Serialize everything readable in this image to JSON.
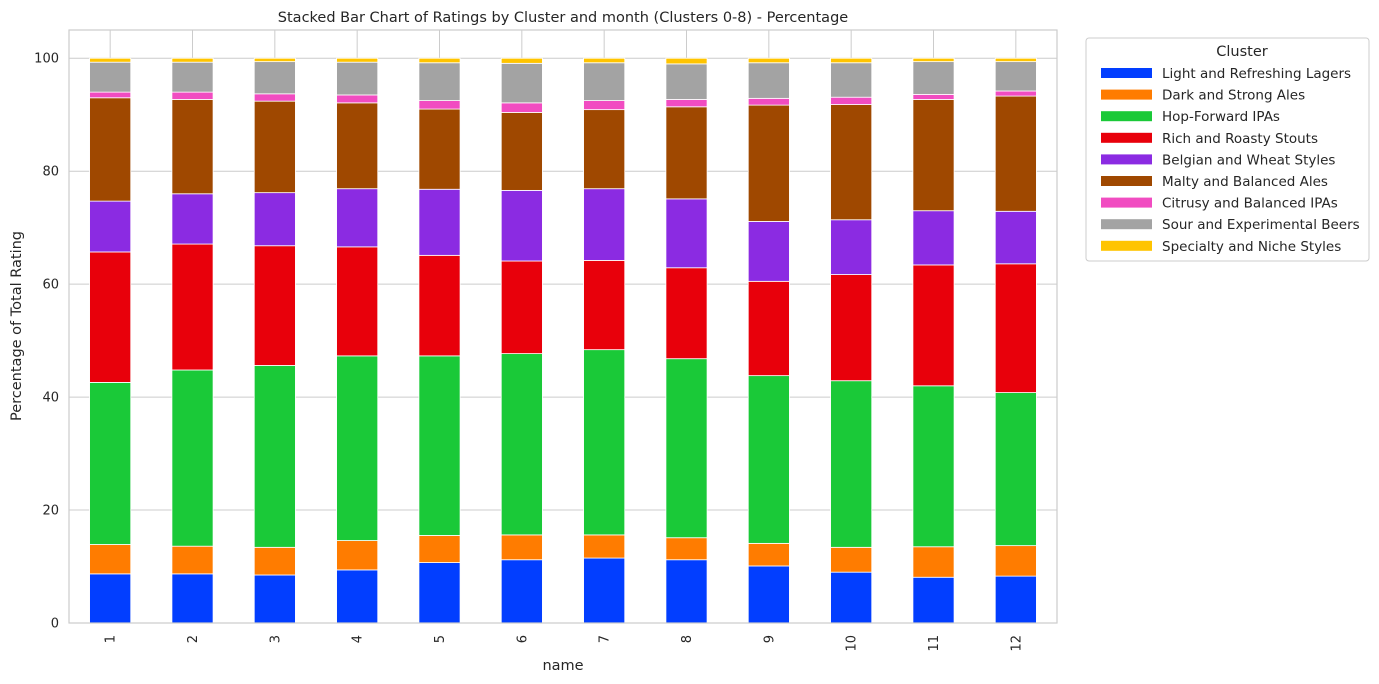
{
  "chart_data": {
    "type": "bar",
    "stacked": true,
    "title": "Stacked Bar Chart of Ratings by Cluster and month (Clusters 0-8) - Percentage",
    "xlabel": "name",
    "ylabel": "Percentage of Total Rating",
    "ylim": [
      0,
      105
    ],
    "yticks": [
      0,
      20,
      40,
      60,
      80,
      100
    ],
    "grid": true,
    "legend_title": "Cluster",
    "legend_position": "outside-top-right",
    "categories": [
      "1",
      "2",
      "3",
      "4",
      "5",
      "6",
      "7",
      "8",
      "9",
      "10",
      "11",
      "12"
    ],
    "series": [
      {
        "name": "Light and Refreshing Lagers",
        "color": "#023eff",
        "values": [
          8.7,
          8.7,
          8.5,
          9.4,
          10.7,
          11.2,
          11.5,
          11.2,
          10.1,
          9.0,
          8.1,
          8.3
        ]
      },
      {
        "name": "Dark and Strong Ales",
        "color": "#ff7c00",
        "values": [
          5.2,
          4.9,
          4.9,
          5.2,
          4.8,
          4.4,
          4.1,
          3.9,
          4.0,
          4.4,
          5.4,
          5.4
        ]
      },
      {
        "name": "Hop-Forward IPAs",
        "color": "#1ac938",
        "values": [
          28.7,
          31.2,
          32.2,
          32.7,
          31.8,
          32.1,
          32.8,
          31.7,
          29.7,
          29.5,
          28.5,
          27.1
        ]
      },
      {
        "name": "Rich and Roasty Stouts",
        "color": "#e8000b",
        "values": [
          23.1,
          22.3,
          21.2,
          19.3,
          17.8,
          16.4,
          15.8,
          16.1,
          16.7,
          18.8,
          21.4,
          22.8
        ]
      },
      {
        "name": "Belgian and Wheat Styles",
        "color": "#8b2be2",
        "values": [
          9.0,
          8.9,
          9.4,
          10.3,
          11.7,
          12.5,
          12.7,
          12.2,
          10.6,
          9.7,
          9.6,
          9.3
        ]
      },
      {
        "name": "Malty and Balanced Ales",
        "color": "#9f4800",
        "values": [
          18.3,
          16.7,
          16.2,
          15.2,
          14.2,
          13.8,
          14.0,
          16.3,
          20.6,
          20.4,
          19.7,
          20.4
        ]
      },
      {
        "name": "Citrusy and Balanced IPAs",
        "color": "#f14cc1",
        "values": [
          1.0,
          1.3,
          1.3,
          1.4,
          1.5,
          1.7,
          1.6,
          1.3,
          1.2,
          1.3,
          0.9,
          0.9
        ]
      },
      {
        "name": "Sour and Experimental Beers",
        "color": "#a3a3a3",
        "values": [
          5.3,
          5.3,
          5.7,
          5.8,
          6.7,
          7.0,
          6.7,
          6.3,
          6.3,
          6.1,
          5.8,
          5.2
        ]
      },
      {
        "name": "Specialty and Niche Styles",
        "color": "#ffc400",
        "values": [
          0.7,
          0.7,
          0.6,
          0.7,
          0.8,
          0.9,
          0.8,
          1.0,
          0.8,
          0.8,
          0.6,
          0.6
        ]
      }
    ]
  }
}
